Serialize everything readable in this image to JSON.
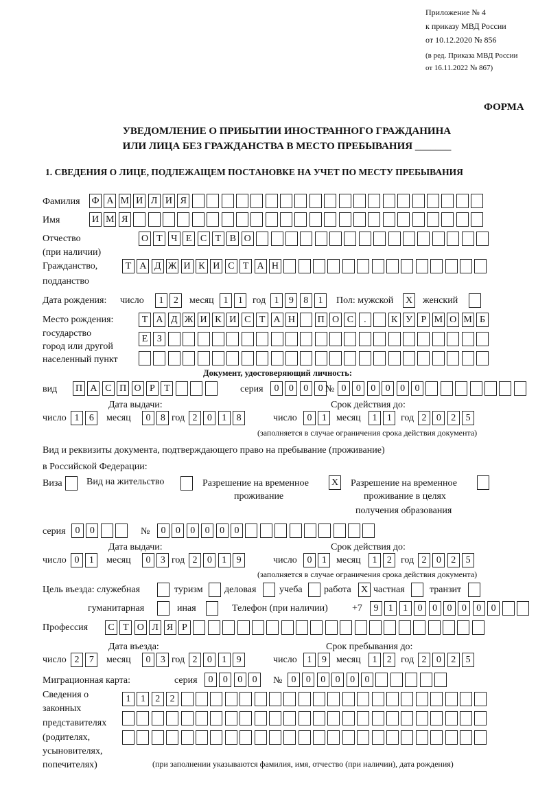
{
  "header": {
    "line1": "Приложение № 4",
    "line2": "к приказу МВД России",
    "line3": "от 10.12.2020 № 856",
    "line4": "(в ред. Приказа МВД России",
    "line5": "от 16.11.2022 № 867)",
    "forma": "ФОРМА",
    "title1": "УВЕДОМЛЕНИЕ О ПРИБЫТИИ ИНОСТРАННОГО ГРАЖДАНИНА",
    "title2": "ИЛИ ЛИЦА БЕЗ ГРАЖДАНСТВА В МЕСТО ПРЕБЫВАНИЯ _______",
    "section1": "1. СВЕДЕНИЯ О ЛИЦЕ, ПОДЛЕЖАЩЕМ ПОСТАНОВКЕ НА УЧЕТ ПО МЕСТУ ПРЕБЫВАНИЯ"
  },
  "labels": {
    "surname": "Фамилия",
    "name": "Имя",
    "patronymic1": "Отчество",
    "patronymic2": "(при наличии)",
    "citizenship1": "Гражданство,",
    "citizenship2": "подданство",
    "birth_date": "Дата рождения:",
    "day": "число",
    "month": "месяц",
    "year": "год",
    "sex": "Пол: мужской",
    "female": "женский",
    "birthplace1": "Место рождения:",
    "birthplace2": "государство",
    "birthplace3": "город или другой",
    "birthplace4": "населенный пункт",
    "id_doc": "Документ, удостоверяющий личность:",
    "kind": "вид",
    "series": "серия",
    "number": "№",
    "issue_date": "Дата выдачи:",
    "valid_until": "Срок действия до:",
    "validity_note": "(заполняется в случае ограничения срока действия документа)",
    "right_doc1": "Вид и реквизиты документа, подтверждающего право на пребывание (проживание)",
    "right_doc2": "в Российской Федерации:",
    "visa": "Виза",
    "residence": "Вид на жительство",
    "temp1": "Разрешение на временное",
    "temp2": "проживание",
    "edu1": "Разрешение на временное",
    "edu2": "проживание в целях",
    "edu3": "получения образования",
    "purpose": "Цель въезда: служебная",
    "tourism": "туризм",
    "business": "деловая",
    "study": "учеба",
    "work": "работа",
    "private": "частная",
    "transit": "транзит",
    "humanitarian": "гуманитарная",
    "other": "иная",
    "phone": "Телефон (при наличии)",
    "phone_prefix": "+7",
    "profession": "Профессия",
    "entry_date": "Дата въезда:",
    "stay_until": "Срок пребывания до:",
    "migration_card": "Миграционная карта:",
    "reps1": "Сведения о",
    "reps2": "законных",
    "reps3": "представителях",
    "reps4": "(родителях,",
    "reps5": "усыновителях,",
    "reps6": "попечителях)",
    "reps_note": "(при заполнении указываются фамилия, имя, отчество (при наличии), дата рождения)"
  },
  "values": {
    "surname": "ФАМИЛИЯ",
    "name": "ИМЯ",
    "patronymic": "ОТЧЕСТВО",
    "citizenship": "ТАДЖИКИСТАН",
    "birth_day": "12",
    "birth_month": "11",
    "birth_year": "1981",
    "male": "X",
    "female": "",
    "birthplace_row1": "ТАДЖИКИСТАН ПОС. КУРМОМБ",
    "birthplace_row2": "ЕЗ",
    "birthplace_row3": "",
    "doc_kind": "ПАСПОРТ",
    "doc_series": "0000",
    "doc_number": "000000",
    "doc_issue_day": "16",
    "doc_issue_month": "08",
    "doc_issue_year": "2018",
    "doc_valid_day": "01",
    "doc_valid_month": "11",
    "doc_valid_year": "2025",
    "visa": "",
    "residence": "",
    "temp_residence": "X",
    "edu_residence": "",
    "right_series": "00",
    "right_number": "000000",
    "right_issue_day": "01",
    "right_issue_month": "03",
    "right_issue_year": "2019",
    "right_valid_day": "01",
    "right_valid_month": "12",
    "right_valid_year": "2025",
    "purpose_official": "",
    "purpose_tourism": "",
    "purpose_business": "",
    "purpose_study": "",
    "purpose_work": "X",
    "purpose_private": "",
    "purpose_transit": "",
    "purpose_humanitarian": "",
    "purpose_other": "",
    "phone": "911000000",
    "profession": "СТОЛЯР",
    "entry_day": "27",
    "entry_month": "03",
    "entry_year": "2019",
    "stay_day": "19",
    "stay_month": "12",
    "stay_year": "2025",
    "mc_series": "0000",
    "mc_number": "000000",
    "reps_row1": "1122",
    "reps_row2": "",
    "reps_row3": ""
  }
}
